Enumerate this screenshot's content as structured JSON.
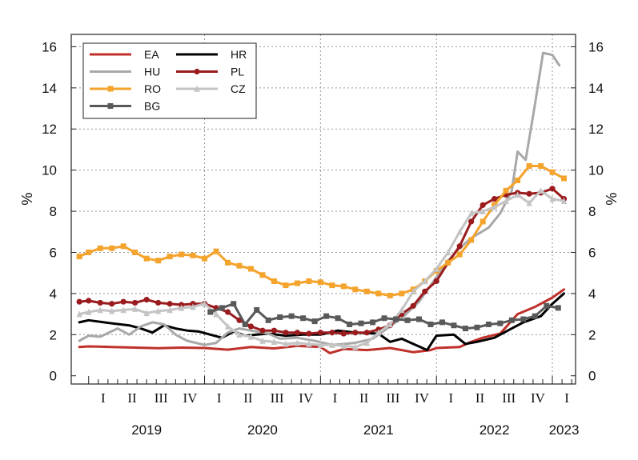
{
  "chart_data": {
    "type": "line",
    "title": "",
    "ylabel_left": "%",
    "ylabel_right": "%",
    "ylim": [
      -0.4,
      16.6
    ],
    "y_ticks": [
      0,
      2,
      4,
      6,
      8,
      10,
      12,
      14,
      16
    ],
    "y_tick_labels": [
      "0",
      "2",
      "4",
      "6",
      "8",
      "10",
      "12",
      "14",
      "16"
    ],
    "grid": true,
    "x_range": [
      2018.85,
      2023.2
    ],
    "quarters": [
      {
        "label": "I",
        "x": 2019.125
      },
      {
        "label": "II",
        "x": 2019.375
      },
      {
        "label": "III",
        "x": 2019.625
      },
      {
        "label": "IV",
        "x": 2019.875
      },
      {
        "label": "I",
        "x": 2020.125
      },
      {
        "label": "II",
        "x": 2020.375
      },
      {
        "label": "III",
        "x": 2020.625
      },
      {
        "label": "IV",
        "x": 2020.875
      },
      {
        "label": "I",
        "x": 2021.125
      },
      {
        "label": "II",
        "x": 2021.375
      },
      {
        "label": "III",
        "x": 2021.625
      },
      {
        "label": "IV",
        "x": 2021.875
      },
      {
        "label": "I",
        "x": 2022.125
      },
      {
        "label": "II",
        "x": 2022.375
      },
      {
        "label": "III",
        "x": 2022.625
      },
      {
        "label": "IV",
        "x": 2022.875
      },
      {
        "label": "I",
        "x": 2023.125
      }
    ],
    "years": [
      {
        "label": "2019",
        "x": 2019.5
      },
      {
        "label": "2020",
        "x": 2020.5
      },
      {
        "label": "2021",
        "x": 2021.5
      },
      {
        "label": "2022",
        "x": 2022.5
      },
      {
        "label": "2023",
        "x": 2023.1
      }
    ],
    "legend_position": "top-left",
    "series": [
      {
        "name": "EA",
        "color": "#c0302b",
        "width": 3,
        "marker": "none",
        "x": [
          2018.92,
          2019.0,
          2019.2,
          2019.4,
          2019.6,
          2019.8,
          2020.0,
          2020.2,
          2020.4,
          2020.6,
          2020.8,
          2021.0,
          2021.08,
          2021.2,
          2021.4,
          2021.6,
          2021.8,
          2021.95,
          2022.0,
          2022.2,
          2022.3,
          2022.4,
          2022.55,
          2022.7,
          2022.85,
          2023.0,
          2023.1
        ],
        "y": [
          1.4,
          1.43,
          1.4,
          1.37,
          1.34,
          1.37,
          1.35,
          1.27,
          1.4,
          1.33,
          1.45,
          1.4,
          1.1,
          1.3,
          1.25,
          1.35,
          1.15,
          1.25,
          1.35,
          1.4,
          1.65,
          1.85,
          2.05,
          3.0,
          3.35,
          3.8,
          4.2
        ]
      },
      {
        "name": "HR",
        "color": "#000000",
        "width": 3,
        "marker": "none",
        "x": [
          2018.92,
          2019.0,
          2019.2,
          2019.35,
          2019.45,
          2019.55,
          2019.65,
          2019.75,
          2019.85,
          2019.95,
          2020.05,
          2020.15,
          2020.25,
          2020.35,
          2020.45,
          2020.55,
          2020.7,
          2020.85,
          2021.0,
          2021.15,
          2021.3,
          2021.5,
          2021.6,
          2021.7,
          2021.8,
          2021.88,
          2021.92,
          2022.0,
          2022.15,
          2022.25,
          2022.35,
          2022.5,
          2022.6,
          2022.75,
          2022.9,
          2023.0,
          2023.1
        ],
        "y": [
          2.6,
          2.7,
          2.55,
          2.45,
          2.3,
          2.1,
          2.45,
          2.3,
          2.2,
          2.15,
          2.0,
          1.85,
          2.15,
          1.95,
          2.0,
          2.05,
          1.95,
          2.0,
          2.0,
          2.2,
          2.1,
          2.05,
          1.65,
          1.8,
          1.55,
          1.35,
          1.25,
          1.95,
          2.0,
          1.55,
          1.65,
          1.85,
          2.15,
          2.6,
          2.9,
          3.5,
          4.0
        ]
      },
      {
        "name": "HU",
        "color": "#a8a8a8",
        "width": 3,
        "marker": "none",
        "x": [
          2018.92,
          2019.0,
          2019.1,
          2019.25,
          2019.35,
          2019.45,
          2019.55,
          2019.65,
          2019.75,
          2019.85,
          2020.0,
          2020.1,
          2020.2,
          2020.3,
          2020.4,
          2020.55,
          2020.65,
          2020.8,
          2020.95,
          2021.1,
          2021.3,
          2021.45,
          2021.55,
          2021.7,
          2021.85,
          2022.0,
          2022.1,
          2022.2,
          2022.3,
          2022.45,
          2022.55,
          2022.65,
          2022.7,
          2022.77,
          2022.85,
          2022.92,
          2023.0,
          2023.06
        ],
        "y": [
          1.7,
          1.95,
          1.9,
          2.3,
          2.0,
          2.4,
          2.6,
          2.5,
          2.0,
          1.7,
          1.5,
          1.6,
          2.1,
          2.3,
          2.2,
          2.05,
          1.8,
          1.85,
          1.7,
          1.5,
          1.6,
          1.8,
          2.2,
          2.8,
          3.6,
          4.8,
          5.6,
          6.2,
          6.7,
          7.2,
          7.9,
          9.0,
          10.9,
          10.5,
          13.2,
          15.7,
          15.6,
          15.1
        ]
      },
      {
        "name": "PL",
        "color": "#9a1b1e",
        "width": 3,
        "marker": "circle",
        "x": [
          2018.92,
          2019.0,
          2019.1,
          2019.2,
          2019.3,
          2019.4,
          2019.5,
          2019.6,
          2019.7,
          2019.8,
          2019.9,
          2020.0,
          2020.1,
          2020.2,
          2020.3,
          2020.4,
          2020.5,
          2020.6,
          2020.7,
          2020.8,
          2020.9,
          2021.0,
          2021.1,
          2021.2,
          2021.3,
          2021.4,
          2021.5,
          2021.6,
          2021.7,
          2021.8,
          2021.9,
          2022.0,
          2022.1,
          2022.2,
          2022.3,
          2022.4,
          2022.5,
          2022.6,
          2022.7,
          2022.8,
          2022.9,
          2023.0,
          2023.1
        ],
        "y": [
          3.6,
          3.65,
          3.55,
          3.5,
          3.6,
          3.55,
          3.7,
          3.55,
          3.5,
          3.45,
          3.5,
          3.5,
          3.3,
          3.1,
          2.7,
          2.4,
          2.2,
          2.2,
          2.1,
          2.1,
          2.05,
          2.1,
          2.1,
          2.05,
          2.1,
          2.1,
          2.25,
          2.45,
          3.0,
          3.4,
          4.1,
          4.6,
          5.5,
          6.3,
          7.5,
          8.3,
          8.6,
          8.8,
          8.9,
          8.85,
          8.9,
          9.1,
          8.6
        ]
      },
      {
        "name": "RO",
        "color": "#f4a32c",
        "width": 3,
        "marker": "square",
        "x": [
          2018.92,
          2019.0,
          2019.1,
          2019.2,
          2019.3,
          2019.4,
          2019.5,
          2019.6,
          2019.7,
          2019.8,
          2019.9,
          2020.0,
          2020.1,
          2020.2,
          2020.3,
          2020.4,
          2020.5,
          2020.6,
          2020.7,
          2020.8,
          2020.9,
          2021.0,
          2021.1,
          2021.2,
          2021.3,
          2021.4,
          2021.5,
          2021.6,
          2021.7,
          2021.8,
          2021.9,
          2022.0,
          2022.1,
          2022.2,
          2022.3,
          2022.4,
          2022.5,
          2022.6,
          2022.7,
          2022.8,
          2022.9,
          2023.0,
          2023.1
        ],
        "y": [
          5.8,
          6.0,
          6.2,
          6.2,
          6.3,
          6.0,
          5.7,
          5.6,
          5.8,
          5.9,
          5.85,
          5.7,
          6.05,
          5.5,
          5.35,
          5.2,
          4.9,
          4.6,
          4.4,
          4.5,
          4.6,
          4.55,
          4.4,
          4.35,
          4.2,
          4.1,
          4.0,
          3.9,
          4.0,
          4.2,
          4.6,
          5.1,
          5.5,
          5.9,
          6.6,
          7.5,
          8.3,
          9.0,
          9.5,
          10.2,
          10.2,
          9.9,
          9.6
        ]
      },
      {
        "name": "CZ",
        "color": "#c4c4c4",
        "width": 3,
        "marker": "triangle",
        "x": [
          2018.92,
          2019.0,
          2019.1,
          2019.2,
          2019.3,
          2019.4,
          2019.5,
          2019.6,
          2019.7,
          2019.8,
          2019.9,
          2020.0,
          2020.1,
          2020.2,
          2020.3,
          2020.4,
          2020.5,
          2020.6,
          2020.7,
          2020.8,
          2020.9,
          2021.0,
          2021.1,
          2021.2,
          2021.3,
          2021.4,
          2021.5,
          2021.6,
          2021.7,
          2021.8,
          2021.9,
          2022.0,
          2022.1,
          2022.2,
          2022.3,
          2022.4,
          2022.5,
          2022.6,
          2022.7,
          2022.8,
          2022.9,
          2023.0,
          2023.1
        ],
        "y": [
          3.0,
          3.1,
          3.2,
          3.15,
          3.2,
          3.25,
          3.05,
          3.15,
          3.2,
          3.3,
          3.35,
          3.5,
          3.0,
          2.4,
          2.0,
          1.9,
          1.7,
          1.65,
          1.55,
          1.6,
          1.55,
          1.5,
          1.5,
          1.45,
          1.4,
          1.6,
          2.1,
          2.5,
          3.2,
          4.1,
          4.6,
          5.2,
          6.0,
          7.0,
          7.9,
          8.0,
          8.2,
          8.5,
          8.8,
          8.4,
          9.0,
          8.6,
          8.5
        ]
      },
      {
        "name": "BG",
        "color": "#595959",
        "width": 3,
        "marker": "square",
        "x": [
          2020.05,
          2020.15,
          2020.25,
          2020.35,
          2020.45,
          2020.55,
          2020.65,
          2020.75,
          2020.85,
          2020.95,
          2021.05,
          2021.15,
          2021.25,
          2021.35,
          2021.45,
          2021.55,
          2021.65,
          2021.75,
          2021.85,
          2021.95,
          2022.05,
          2022.15,
          2022.25,
          2022.35,
          2022.45,
          2022.55,
          2022.65,
          2022.75,
          2022.85,
          2022.95,
          2023.05
        ],
        "y": [
          3.1,
          3.3,
          3.5,
          2.5,
          3.2,
          2.7,
          2.85,
          2.9,
          2.8,
          2.65,
          2.9,
          2.8,
          2.5,
          2.55,
          2.6,
          2.8,
          2.75,
          2.7,
          2.75,
          2.5,
          2.6,
          2.45,
          2.3,
          2.35,
          2.5,
          2.55,
          2.7,
          2.75,
          2.9,
          3.4,
          3.3
        ]
      }
    ],
    "legend": {
      "rows": [
        [
          "EA",
          "HR"
        ],
        [
          "HU",
          "PL"
        ],
        [
          "RO",
          "CZ"
        ],
        [
          "BG"
        ]
      ]
    }
  }
}
